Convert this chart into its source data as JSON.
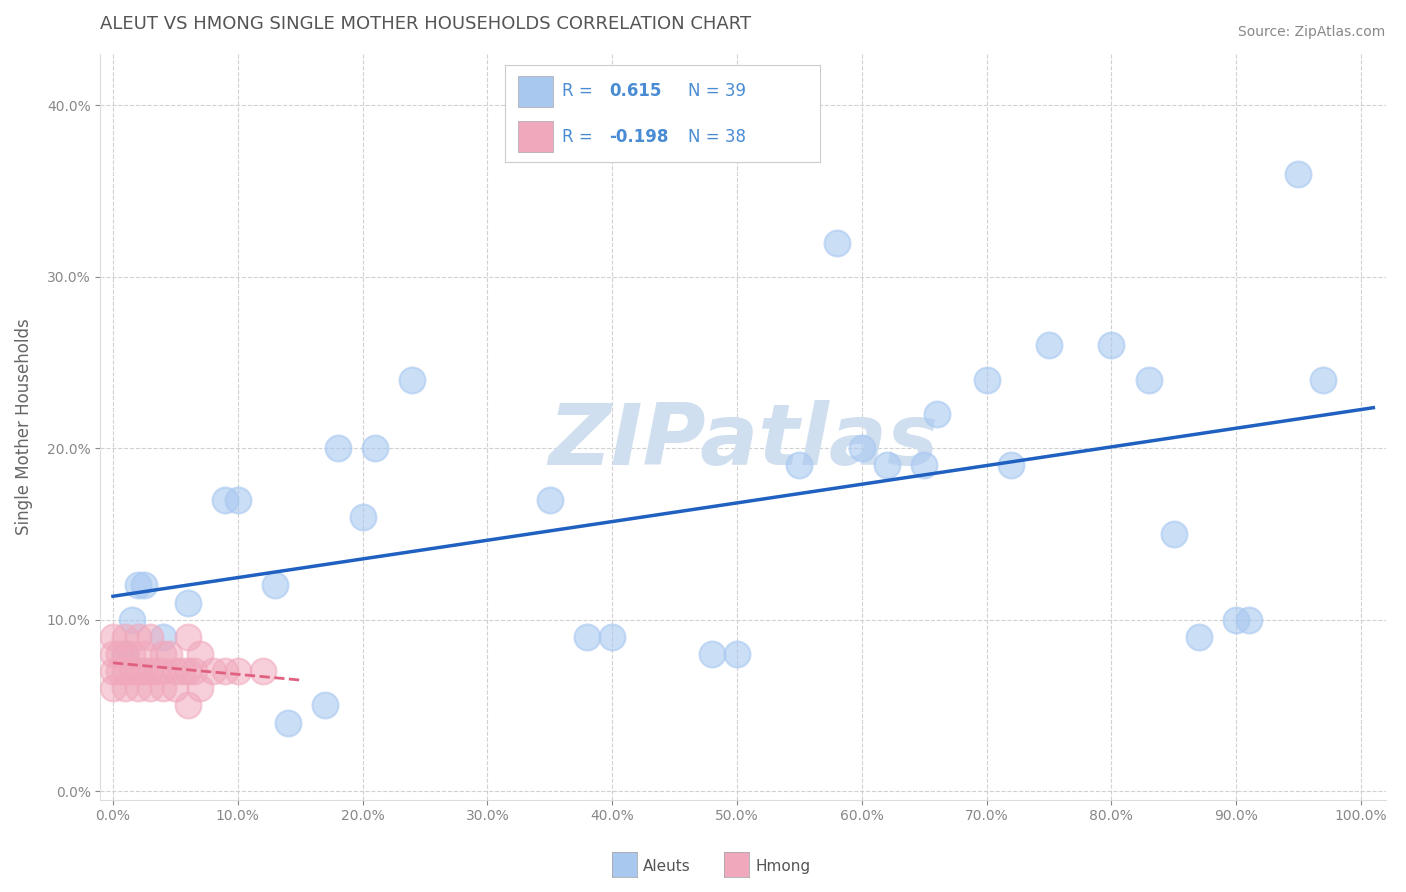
{
  "title": "ALEUT VS HMONG SINGLE MOTHER HOUSEHOLDS CORRELATION CHART",
  "source": "Source: ZipAtlas.com",
  "ylabel": "Single Mother Households",
  "xlabel": "",
  "xlim": [
    -0.01,
    1.02
  ],
  "ylim": [
    -0.005,
    0.43
  ],
  "yticks": [
    0.0,
    0.1,
    0.2,
    0.3,
    0.4
  ],
  "xticks": [
    0.0,
    0.1,
    0.2,
    0.3,
    0.4,
    0.5,
    0.6,
    0.7,
    0.8,
    0.9,
    1.0
  ],
  "aleuts_x": [
    0.01,
    0.015,
    0.02,
    0.025,
    0.04,
    0.06,
    0.09,
    0.1,
    0.13,
    0.14,
    0.17,
    0.18,
    0.2,
    0.21,
    0.24,
    0.35,
    0.38,
    0.4,
    0.48,
    0.5,
    0.55,
    0.58,
    0.6,
    0.62,
    0.65,
    0.66,
    0.7,
    0.72,
    0.75,
    0.8,
    0.83,
    0.85,
    0.87,
    0.9,
    0.91,
    0.95,
    0.97
  ],
  "aleuts_y": [
    0.08,
    0.1,
    0.12,
    0.12,
    0.09,
    0.11,
    0.17,
    0.17,
    0.12,
    0.04,
    0.05,
    0.2,
    0.16,
    0.2,
    0.24,
    0.17,
    0.09,
    0.09,
    0.08,
    0.08,
    0.19,
    0.32,
    0.2,
    0.19,
    0.19,
    0.22,
    0.24,
    0.19,
    0.26,
    0.26,
    0.24,
    0.15,
    0.09,
    0.1,
    0.1,
    0.36,
    0.24
  ],
  "hmong_x": [
    0.0,
    0.0,
    0.0,
    0.0,
    0.005,
    0.005,
    0.01,
    0.01,
    0.01,
    0.01,
    0.015,
    0.015,
    0.02,
    0.02,
    0.02,
    0.025,
    0.025,
    0.03,
    0.03,
    0.03,
    0.035,
    0.04,
    0.04,
    0.04,
    0.045,
    0.05,
    0.05,
    0.055,
    0.06,
    0.06,
    0.06,
    0.065,
    0.07,
    0.07,
    0.08,
    0.09,
    0.1,
    0.12
  ],
  "hmong_y": [
    0.06,
    0.07,
    0.08,
    0.09,
    0.07,
    0.08,
    0.06,
    0.07,
    0.08,
    0.09,
    0.07,
    0.08,
    0.06,
    0.07,
    0.09,
    0.07,
    0.08,
    0.06,
    0.07,
    0.09,
    0.07,
    0.06,
    0.07,
    0.08,
    0.08,
    0.06,
    0.07,
    0.07,
    0.05,
    0.07,
    0.09,
    0.07,
    0.06,
    0.08,
    0.07,
    0.07,
    0.07,
    0.07
  ],
  "aleuts_color": "#a8c8f0",
  "hmong_color": "#f0a8bc",
  "trendline_aleuts_color": "#2060c0",
  "trendline_hmong_color": "#e06080",
  "legend_color": "#4a8cd4",
  "background_color": "#ffffff",
  "grid_color": "#cccccc",
  "title_color": "#555555",
  "axis_label_color": "#666666",
  "tick_color": "#888888",
  "watermark_color": "#d0dff0"
}
